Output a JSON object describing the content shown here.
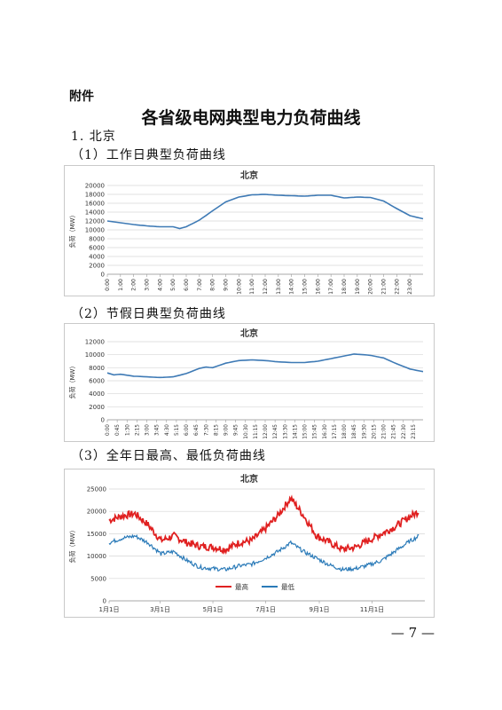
{
  "doc": {
    "attachment_label": "附件",
    "title": "各省级电网典型电力负荷曲线",
    "section": "1. 北京",
    "sub1": "（1）工作日典型负荷曲线",
    "sub2": "（2）节假日典型负荷曲线",
    "sub3": "（3）全年日最高、最低负荷曲线",
    "page_number": "— 7 —"
  },
  "chart_data": [
    {
      "type": "line",
      "title": "北京",
      "ylabel": "负荷（MW）",
      "ylim": [
        0,
        20000
      ],
      "y_ticks": [
        0,
        2000,
        4000,
        6000,
        8000,
        10000,
        12000,
        14000,
        16000,
        18000,
        20000
      ],
      "x_tick_labels": [
        "0:00",
        "1:00",
        "2:00",
        "3:00",
        "4:00",
        "5:00",
        "6:00",
        "7:00",
        "8:00",
        "9:00",
        "10:00",
        "11:00",
        "12:00",
        "13:00",
        "14:00",
        "15:00",
        "16:00",
        "17:00",
        "18:00",
        "19:00",
        "20:00",
        "21:00",
        "22:00",
        "23:00"
      ],
      "grid": true,
      "color": "#3e7ab5",
      "hours": [
        0,
        1,
        2,
        3,
        4,
        5,
        5.5,
        6,
        7,
        8,
        9,
        10,
        11,
        12,
        13,
        14,
        15,
        16,
        17,
        18,
        19,
        20,
        21,
        22,
        23,
        24
      ],
      "values": [
        12000,
        11600,
        11200,
        10900,
        10700,
        10700,
        10300,
        10700,
        12200,
        14300,
        16300,
        17400,
        17900,
        18000,
        17800,
        17700,
        17600,
        17800,
        17800,
        17200,
        17400,
        17300,
        16500,
        14800,
        13200,
        12500
      ]
    },
    {
      "type": "line",
      "title": "北京",
      "ylabel": "负荷（MW）",
      "ylim": [
        0,
        12000
      ],
      "y_ticks": [
        0,
        2000,
        4000,
        6000,
        8000,
        10000,
        12000
      ],
      "x_tick_labels": [
        "0:00",
        "0:45",
        "1:30",
        "2:15",
        "3:00",
        "3:45",
        "4:30",
        "5:15",
        "6:00",
        "6:45",
        "7:30",
        "8:15",
        "9:00",
        "9:45",
        "10:30",
        "11:15",
        "12:00",
        "12:45",
        "13:30",
        "14:15",
        "15:00",
        "15:45",
        "16:30",
        "17:15",
        "18:00",
        "18:45",
        "19:30",
        "20:15",
        "21:00",
        "21:45",
        "22:30",
        "23:15"
      ],
      "grid": true,
      "color": "#3e7ab5",
      "hours": [
        0,
        0.5,
        1,
        2,
        3,
        4,
        5,
        6,
        7,
        7.5,
        8,
        9,
        10,
        11,
        12,
        13,
        14,
        15,
        16,
        17,
        18,
        18.75,
        19.5,
        20,
        21,
        22,
        23,
        24
      ],
      "values": [
        7200,
        6900,
        7000,
        6700,
        6600,
        6500,
        6600,
        7100,
        7900,
        8100,
        8000,
        8700,
        9100,
        9200,
        9100,
        8900,
        8800,
        8800,
        9000,
        9400,
        9800,
        10100,
        10000,
        9900,
        9500,
        8600,
        7800,
        7400
      ]
    },
    {
      "type": "line",
      "title": "北京",
      "ylabel": "负荷（MW）",
      "ylim": [
        0,
        25000
      ],
      "y_ticks": [
        0,
        5000,
        10000,
        15000,
        20000,
        25000
      ],
      "x_tick_labels": [
        "1月1日",
        "3月1日",
        "5月1日",
        "7月1日",
        "9月1日",
        "11月1日"
      ],
      "x_tick_days": [
        0,
        59,
        120,
        181,
        243,
        304
      ],
      "grid": true,
      "legend": "bottom",
      "series": [
        {
          "name": "最高",
          "color": "#e02020",
          "days": [
            0,
            15,
            30,
            45,
            60,
            75,
            90,
            105,
            120,
            135,
            150,
            165,
            180,
            195,
            210,
            225,
            240,
            255,
            270,
            285,
            300,
            315,
            330,
            345,
            358
          ],
          "values": [
            18000,
            19000,
            19500,
            17000,
            13500,
            14500,
            13000,
            12200,
            12000,
            11500,
            13000,
            13500,
            16000,
            19000,
            23000,
            19000,
            14500,
            13000,
            11500,
            12000,
            13500,
            15000,
            16500,
            18500,
            20000
          ]
        },
        {
          "name": "最低",
          "color": "#2a7ab8",
          "days": [
            0,
            15,
            30,
            45,
            60,
            75,
            90,
            105,
            120,
            135,
            150,
            165,
            180,
            195,
            210,
            225,
            240,
            255,
            270,
            285,
            300,
            315,
            330,
            345,
            358
          ],
          "values": [
            13000,
            14000,
            14500,
            13000,
            10500,
            11000,
            9000,
            7500,
            7200,
            7000,
            7800,
            8200,
            9500,
            11000,
            13000,
            11000,
            9500,
            8000,
            7000,
            7200,
            8000,
            9000,
            11000,
            13000,
            14500
          ]
        }
      ]
    }
  ]
}
